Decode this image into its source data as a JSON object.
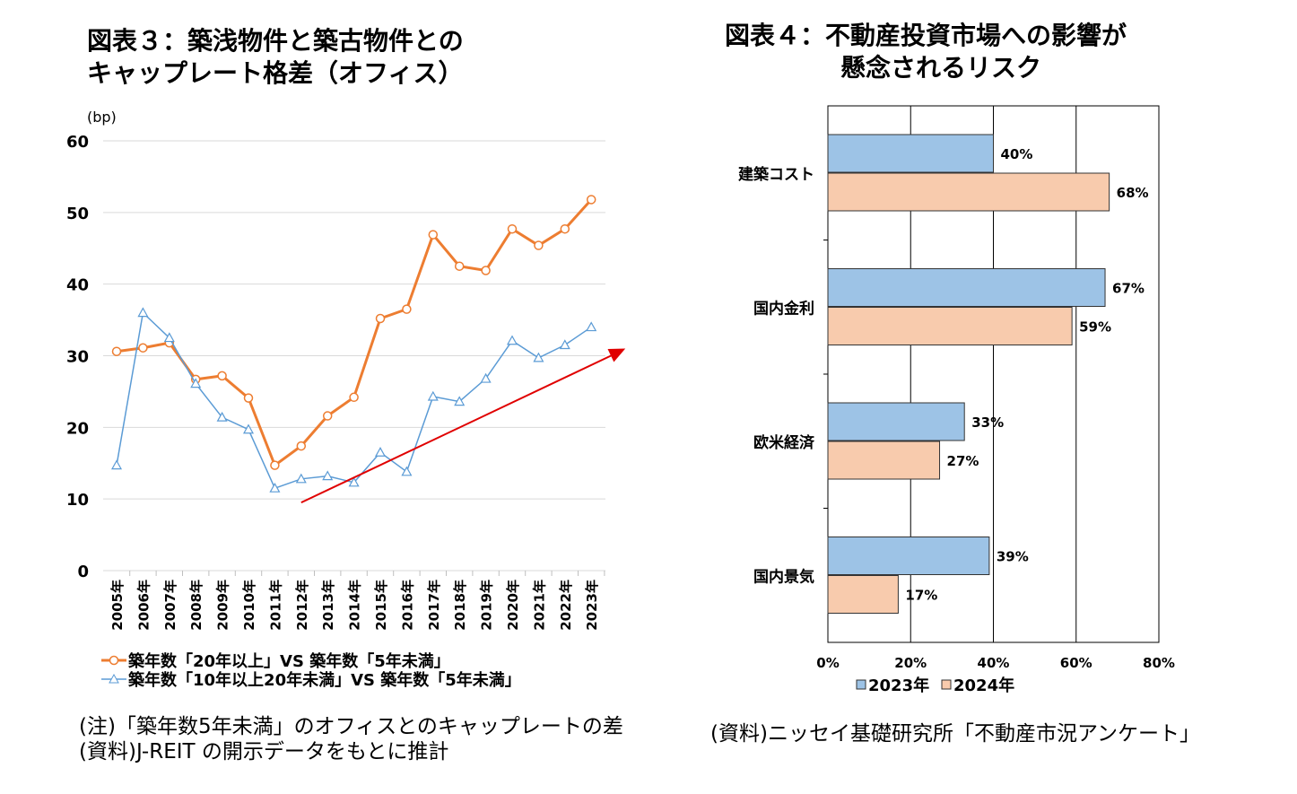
{
  "chart_data": [
    {
      "type": "line",
      "title_line1": "図表３：築浅物件と築古物件との",
      "title_line2": "キャップレート格差（オフィス）",
      "ylabel": "(bp)",
      "ylim": [
        0,
        60
      ],
      "yticks": [
        "0",
        "10",
        "20",
        "30",
        "40",
        "50",
        "60"
      ],
      "grid": true,
      "categories": [
        "2005年",
        "2006年",
        "2007年",
        "2008年",
        "2009年",
        "2010年",
        "2011年",
        "2012年",
        "2013年",
        "2014年",
        "2015年",
        "2016年",
        "2017年",
        "2018年",
        "2019年",
        "2020年",
        "2021年",
        "2022年",
        "2023年"
      ],
      "series": [
        {
          "name": "築年数「20年以上」VS 築年数「5年未満」",
          "color": "#ED7D31",
          "marker": "circle",
          "values": [
            30.6,
            31.1,
            31.8,
            26.7,
            27.2,
            24.1,
            14.7,
            17.4,
            21.6,
            24.2,
            35.2,
            36.5,
            46.9,
            42.5,
            41.9,
            47.7,
            45.4,
            47.7,
            51.8
          ]
        },
        {
          "name": "築年数「10年以上20年未満」VS 築年数「5年未満」",
          "color": "#5B9BD5",
          "marker": "triangle",
          "values": [
            14.7,
            36.0,
            32.5,
            26.1,
            21.4,
            19.7,
            11.5,
            12.8,
            13.2,
            12.3,
            16.5,
            13.8,
            24.3,
            23.6,
            26.8,
            32.1,
            29.7,
            31.5,
            34.0
          ]
        }
      ],
      "annotation": {
        "type": "trend-arrow",
        "color": "#E00000",
        "from": [
          "2012年",
          9.5
        ],
        "to": [
          "2024年",
          31
        ]
      },
      "legend_position": "bottom-left",
      "notes": [
        "(注)「築年数5年未満」のオフィスとのキャップレートの差",
        "(資料)J-REIT の開示データをもとに推計"
      ]
    },
    {
      "type": "bar",
      "orientation": "horizontal",
      "title_line1": "図表４：不動産投資市場への影響が",
      "title_line2": "懸念されるリスク",
      "categories": [
        "建築コスト",
        "国内金利",
        "欧米経済",
        "国内景気"
      ],
      "xlim": [
        0,
        80
      ],
      "xticks": [
        "0%",
        "20%",
        "40%",
        "60%",
        "80%"
      ],
      "grid": true,
      "series": [
        {
          "name": "2023年",
          "color": "#9DC3E6",
          "values": [
            40,
            67,
            33,
            39
          ],
          "labels": [
            "40%",
            "67%",
            "33%",
            "39%"
          ]
        },
        {
          "name": "2024年",
          "color": "#F8CBAD",
          "values": [
            68,
            59,
            27,
            17
          ],
          "labels": [
            "68%",
            "59%",
            "27%",
            "17%"
          ]
        }
      ],
      "legend_position": "bottom",
      "notes": [
        "(資料)ニッセイ基礎研究所「不動産市況アンケート」"
      ]
    }
  ]
}
